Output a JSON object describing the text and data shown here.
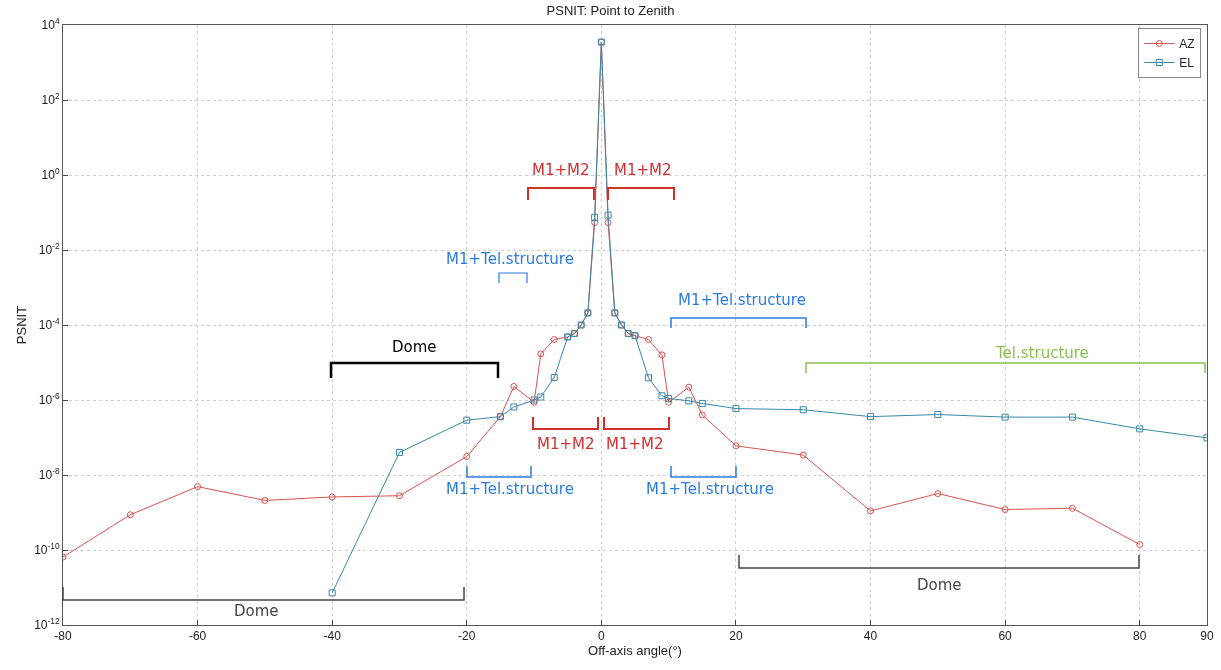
{
  "chart_data": {
    "type": "line",
    "title": "PSNIT: Point to Zenith",
    "xlabel": "Off-axis angle(°)",
    "ylabel": "PSNIT",
    "log": "y",
    "grid": true,
    "legend": "top right",
    "line_style": "solid",
    "xlim": [
      -80,
      90
    ],
    "xticks": [
      -80,
      -60,
      -40,
      -20,
      0,
      20,
      40,
      60,
      80,
      90
    ],
    "ylim": [
      1e-12,
      10000.0
    ],
    "yticks": [
      {
        "value": 1e-12,
        "label": "10$^{-12}$"
      },
      {
        "value": 1e-10,
        "label": "10$^{-10}$"
      },
      {
        "value": 1e-08,
        "label": "10$^{-8}$"
      },
      {
        "value": 1e-06,
        "label": "10$^{-6}$"
      },
      {
        "value": 0.0001,
        "label": "10$^{-4}$"
      },
      {
        "value": 0.01,
        "label": "10$^{-2}$"
      },
      {
        "value": 1,
        "label": "10$^{0}$"
      },
      {
        "value": 100,
        "label": "10$^{2}$"
      },
      {
        "value": 10000,
        "label": "10$^{4}$"
      }
    ],
    "series": [
      {
        "name": "AZ",
        "color": "#d9534f",
        "marker": "circle",
        "x": [
          -80,
          -70,
          -60,
          -50,
          -40,
          -30,
          -20,
          -15,
          -13,
          -10,
          -9,
          -7,
          -5,
          -4,
          -3,
          -2,
          -1,
          0,
          1,
          2,
          3,
          4,
          5,
          7,
          9,
          10,
          13,
          15,
          20,
          30,
          40,
          50,
          60,
          70,
          80
        ],
        "values": [
          6.5e-11,
          8.7e-10,
          4.9e-09,
          2.1e-09,
          2.6e-09,
          2.8e-09,
          3.1e-08,
          3.6e-07,
          2.3e-06,
          8.7e-07,
          1.7e-05,
          4.1e-05,
          4.8e-05,
          5.9e-05,
          0.0001,
          0.00021,
          0.054,
          3500.0,
          0.054,
          0.00021,
          0.0001,
          5.9e-05,
          5.2e-05,
          4.1e-05,
          1.6e-05,
          8.7e-07,
          2.2e-06,
          4e-07,
          6e-08,
          3.4e-08,
          1.1e-09,
          3.2e-09,
          1.2e-09,
          1.3e-09,
          1.4e-10
        ]
      },
      {
        "name": "EL",
        "color": "#3a87a8",
        "marker": "square",
        "x": [
          -40,
          -30,
          -20,
          -15,
          -13,
          -10,
          -9,
          -7,
          -5,
          -4,
          -3,
          -2,
          -1,
          0,
          1,
          2,
          3,
          4,
          5,
          7,
          9,
          10,
          13,
          15,
          20,
          30,
          40,
          50,
          60,
          70,
          80,
          90
        ],
        "values": [
          7.2e-12,
          4e-08,
          2.9e-07,
          3.6e-07,
          6.5e-07,
          1e-06,
          1.2e-06,
          4e-06,
          4.8e-05,
          5.9e-05,
          0.0001,
          0.00021,
          0.074,
          3500.0,
          0.085,
          0.00021,
          0.0001,
          5.9e-05,
          5.2e-05,
          3.9e-06,
          1.3e-06,
          1.1e-06,
          9.5e-07,
          8.1e-07,
          5.9e-07,
          5.5e-07,
          3.6e-07,
          4.1e-07,
          3.5e-07,
          3.5e-07,
          1.7e-07,
          9.8e-08
        ]
      }
    ],
    "annotations": [
      "M1+M2",
      "M1+M2",
      "M1+Tel.structure",
      "M1+Tel.structure",
      "Dome",
      "Tel.structure",
      "M1+M2",
      "M1+M2",
      "M1+Tel.structure",
      "M1+Tel.structure",
      "Dome",
      "Dome"
    ]
  }
}
